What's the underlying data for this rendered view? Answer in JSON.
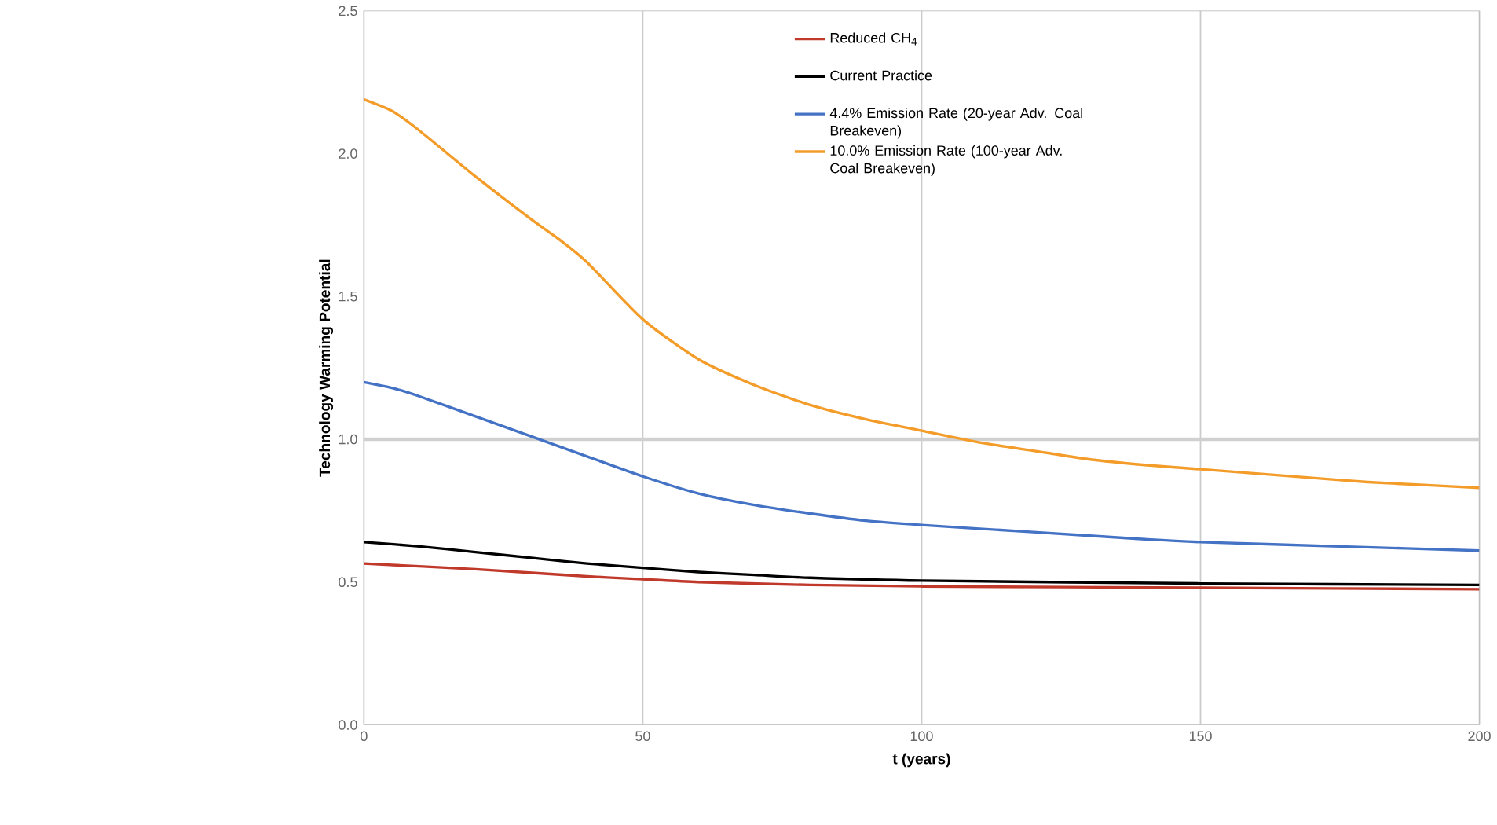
{
  "chart_data": {
    "type": "line",
    "xlabel": "t (years)",
    "ylabel": "Technology Warming Potential",
    "xlim": [
      0,
      200
    ],
    "ylim": [
      0,
      2.5
    ],
    "xticks": [
      0,
      50,
      100,
      150,
      200
    ],
    "yticks": [
      {
        "value": 0,
        "label": "0.0"
      },
      {
        "value": 0.5,
        "label": "0.5"
      },
      {
        "value": 1,
        "label": "1.0"
      },
      {
        "value": 1.5,
        "label": "1.5"
      },
      {
        "value": 2,
        "label": "2.0"
      },
      {
        "value": 2.5,
        "label": "2.5"
      }
    ],
    "grid": "x",
    "legend": "top",
    "marker": "none",
    "line_style": "solid",
    "ref_lines": [
      {
        "axis": "y",
        "value": 1,
        "color": "#d0d0d0"
      }
    ],
    "series": [
      {
        "name": "Reduced CH$_{4}$",
        "color": "#c0392b",
        "x": [
          0,
          20,
          40,
          50,
          60,
          80,
          100,
          150,
          200
        ],
        "values": [
          0.565,
          0.545,
          0.52,
          0.51,
          0.5,
          0.49,
          0.485,
          0.48,
          0.475
        ]
      },
      {
        "name": "Current Practice",
        "color": "#000000",
        "x": [
          0,
          10,
          20,
          30,
          40,
          50,
          60,
          70,
          80,
          100,
          150,
          200
        ],
        "values": [
          0.64,
          0.625,
          0.605,
          0.585,
          0.565,
          0.55,
          0.535,
          0.525,
          0.515,
          0.505,
          0.495,
          0.49
        ]
      },
      {
        "name": "4.4% Emission Rate (20-year Adv. Coal Breakeven)",
        "color": "#4472c4",
        "x": [
          0,
          5,
          10,
          20,
          30,
          40,
          50,
          60,
          70,
          80,
          90,
          100,
          120,
          140,
          150,
          175,
          200
        ],
        "values": [
          1.2,
          1.18,
          1.15,
          1.08,
          1.01,
          0.94,
          0.87,
          0.81,
          0.77,
          0.74,
          0.715,
          0.7,
          0.675,
          0.65,
          0.64,
          0.625,
          0.61
        ]
      },
      {
        "name": "10.0% Emission Rate (100-year Adv. Coal Breakeven)",
        "color": "#f39c2a",
        "x": [
          0,
          5,
          10,
          20,
          30,
          35,
          40,
          50,
          60,
          70,
          80,
          90,
          100,
          110,
          120,
          130,
          140,
          150,
          160,
          170,
          180,
          190,
          200
        ],
        "values": [
          2.19,
          2.15,
          2.08,
          1.92,
          1.77,
          1.7,
          1.62,
          1.42,
          1.28,
          1.19,
          1.12,
          1.07,
          1.03,
          0.99,
          0.96,
          0.93,
          0.91,
          0.895,
          0.88,
          0.865,
          0.85,
          0.84,
          0.83
        ]
      }
    ]
  }
}
